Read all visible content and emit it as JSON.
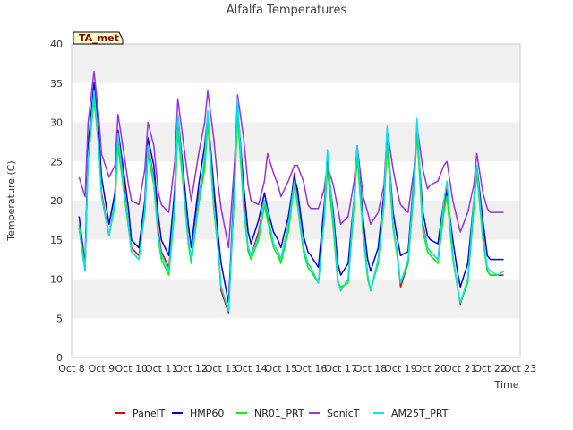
{
  "chart_data": {
    "type": "line",
    "title": "Alfalfa Temperatures",
    "xlabel": "Time",
    "ylabel": "Temperature (C)",
    "badge": "TA_met",
    "ylim": [
      0,
      40
    ],
    "xlim": [
      8,
      23
    ],
    "yticks": [
      0,
      5,
      10,
      15,
      20,
      25,
      30,
      35,
      40
    ],
    "ytick_labels": [
      "0",
      "5",
      "10",
      "15",
      "20",
      "25",
      "30",
      "35",
      "40"
    ],
    "xticks": [
      8,
      9,
      10,
      11,
      12,
      13,
      14,
      15,
      16,
      17,
      18,
      19,
      20,
      21,
      22,
      23
    ],
    "xtick_labels": [
      "Oct 8",
      "Oct 9",
      "Oct 10",
      "Oct 11",
      "Oct 12",
      "Oct 13",
      "Oct 14",
      "Oct 15",
      "Oct 16",
      "Oct 17",
      "Oct 18",
      "Oct 19",
      "Oct 20",
      "Oct 21",
      "Oct 22",
      "Oct 23"
    ],
    "grid": "horizontal bands",
    "legend_position": "bottom",
    "x_unit": "day of October",
    "series": [
      {
        "name": "PanelT",
        "color": "#dd0000",
        "x": [
          8.25,
          8.45,
          8.55,
          8.75,
          8.9,
          9.0,
          9.25,
          9.45,
          9.55,
          9.75,
          9.9,
          10.0,
          10.25,
          10.45,
          10.55,
          10.75,
          10.9,
          11.0,
          11.25,
          11.45,
          11.55,
          11.75,
          11.9,
          12.0,
          12.25,
          12.45,
          12.55,
          12.75,
          12.9,
          13.0,
          13.25,
          13.45,
          13.55,
          13.75,
          13.9,
          14.0,
          14.25,
          14.45,
          14.55,
          14.75,
          14.9,
          15.0,
          15.25,
          15.45,
          15.55,
          15.75,
          15.9,
          16.0,
          16.25,
          16.45,
          16.55,
          16.75,
          16.9,
          17.0,
          17.25,
          17.45,
          17.55,
          17.75,
          17.9,
          18.0,
          18.25,
          18.45,
          18.55,
          18.75,
          18.9,
          19.0,
          19.25,
          19.45,
          19.55,
          19.75,
          19.9,
          20.0,
          20.25,
          20.45,
          20.55,
          20.75,
          20.9,
          21.0,
          21.25,
          21.45,
          21.55,
          21.75,
          21.9,
          22.0,
          22.25,
          22.45
        ],
        "y": [
          16.5,
          11.0,
          26.0,
          34.0,
          28.0,
          21.0,
          15.5,
          20.0,
          28.0,
          22.0,
          17.0,
          14.0,
          13.0,
          19.0,
          27.0,
          23.0,
          16.0,
          13.5,
          11.5,
          20.0,
          30.0,
          22.0,
          15.0,
          12.5,
          20.5,
          25.0,
          30.5,
          20.0,
          14.0,
          8.5,
          5.7,
          22.0,
          31.5,
          20.0,
          14.0,
          13.0,
          16.0,
          20.0,
          18.0,
          14.5,
          13.5,
          12.5,
          17.0,
          23.5,
          20.5,
          14.0,
          12.0,
          11.5,
          9.5,
          18.0,
          25.0,
          17.0,
          10.0,
          8.5,
          10.0,
          20.0,
          26.0,
          16.0,
          10.5,
          8.5,
          12.5,
          20.0,
          27.5,
          17.0,
          13.0,
          9.0,
          12.0,
          22.0,
          29.0,
          17.0,
          14.0,
          13.5,
          12.5,
          19.5,
          21.5,
          13.0,
          9.0,
          6.8,
          10.0,
          19.5,
          24.0,
          16.0,
          11.0,
          10.5,
          10.5,
          10.5
        ]
      },
      {
        "name": "HMP60",
        "color": "#0000dd",
        "x": [
          8.25,
          8.45,
          8.55,
          8.75,
          8.9,
          9.0,
          9.25,
          9.45,
          9.55,
          9.75,
          9.9,
          10.0,
          10.25,
          10.45,
          10.55,
          10.75,
          10.9,
          11.0,
          11.25,
          11.45,
          11.55,
          11.75,
          11.9,
          12.0,
          12.25,
          12.45,
          12.55,
          12.75,
          12.9,
          13.0,
          13.25,
          13.45,
          13.55,
          13.75,
          13.9,
          14.0,
          14.25,
          14.45,
          14.55,
          14.75,
          14.9,
          15.0,
          15.25,
          15.45,
          15.55,
          15.75,
          15.9,
          16.0,
          16.25,
          16.45,
          16.55,
          16.75,
          16.9,
          17.0,
          17.25,
          17.45,
          17.55,
          17.75,
          17.9,
          18.0,
          18.25,
          18.45,
          18.55,
          18.75,
          18.9,
          19.0,
          19.25,
          19.45,
          19.55,
          19.75,
          19.9,
          20.0,
          20.25,
          20.45,
          20.55,
          20.75,
          20.9,
          21.0,
          21.25,
          21.45,
          21.55,
          21.75,
          21.9,
          22.0,
          22.25,
          22.45
        ],
        "y": [
          18.0,
          12.0,
          27.0,
          35.0,
          29.0,
          23.0,
          17.0,
          21.0,
          29.0,
          23.5,
          19.0,
          15.0,
          14.0,
          20.0,
          28.0,
          24.5,
          18.0,
          15.0,
          13.0,
          21.5,
          31.0,
          23.0,
          17.0,
          14.0,
          22.0,
          27.0,
          31.0,
          22.0,
          15.5,
          12.0,
          7.0,
          23.0,
          32.0,
          22.0,
          16.0,
          14.5,
          17.5,
          21.0,
          19.0,
          16.0,
          15.0,
          14.0,
          18.0,
          23.0,
          21.5,
          15.5,
          13.5,
          13.0,
          11.5,
          19.5,
          25.0,
          18.5,
          12.0,
          10.5,
          12.0,
          20.5,
          27.0,
          17.5,
          12.5,
          11.0,
          14.0,
          21.0,
          28.5,
          18.5,
          15.0,
          13.0,
          13.5,
          23.0,
          29.0,
          18.5,
          15.5,
          15.0,
          14.5,
          20.0,
          21.0,
          15.0,
          11.0,
          9.0,
          12.0,
          20.0,
          24.5,
          17.5,
          13.0,
          12.5,
          12.5,
          12.5
        ]
      },
      {
        "name": "NR01_PRT",
        "color": "#00ee00",
        "x": [
          8.25,
          8.45,
          8.55,
          8.75,
          8.9,
          9.0,
          9.25,
          9.45,
          9.55,
          9.75,
          9.9,
          10.0,
          10.25,
          10.45,
          10.55,
          10.75,
          10.9,
          11.0,
          11.25,
          11.45,
          11.55,
          11.75,
          11.9,
          12.0,
          12.25,
          12.45,
          12.55,
          12.75,
          12.9,
          13.0,
          13.25,
          13.45,
          13.55,
          13.75,
          13.9,
          14.0,
          14.25,
          14.45,
          14.55,
          14.75,
          14.9,
          15.0,
          15.25,
          15.45,
          15.55,
          15.75,
          15.9,
          16.0,
          16.25,
          16.45,
          16.55,
          16.75,
          16.9,
          17.0,
          17.25,
          17.45,
          17.55,
          17.75,
          17.9,
          18.0,
          18.25,
          18.45,
          18.55,
          18.75,
          18.9,
          19.0,
          19.25,
          19.45,
          19.55,
          19.75,
          19.9,
          20.0,
          20.25,
          20.45,
          20.55,
          20.75,
          20.9,
          21.0,
          21.25,
          21.45,
          21.55,
          21.75,
          21.9,
          22.0,
          22.25,
          22.45
        ],
        "y": [
          17.0,
          11.5,
          25.0,
          33.0,
          27.0,
          20.5,
          15.5,
          19.5,
          27.0,
          21.0,
          16.5,
          13.5,
          12.5,
          18.5,
          26.0,
          22.0,
          15.0,
          12.5,
          10.5,
          19.0,
          29.0,
          21.0,
          14.5,
          12.0,
          19.5,
          24.0,
          30.0,
          19.0,
          13.5,
          9.0,
          6.0,
          21.0,
          31.0,
          19.0,
          13.5,
          12.5,
          15.0,
          19.5,
          17.5,
          14.0,
          13.0,
          12.0,
          16.0,
          22.0,
          19.5,
          13.5,
          11.5,
          11.0,
          9.5,
          17.5,
          24.0,
          16.5,
          9.5,
          9.0,
          9.5,
          19.5,
          25.5,
          15.5,
          10.0,
          8.5,
          12.0,
          19.5,
          27.0,
          16.5,
          12.5,
          9.5,
          12.0,
          21.5,
          28.5,
          16.0,
          13.5,
          13.0,
          12.0,
          18.5,
          20.5,
          12.5,
          9.0,
          7.0,
          9.5,
          19.0,
          23.5,
          15.0,
          11.0,
          10.5,
          10.5,
          11.0
        ]
      },
      {
        "name": "SonicT",
        "color": "#9a30e0",
        "x": [
          8.25,
          8.45,
          8.55,
          8.75,
          8.9,
          9.0,
          9.25,
          9.45,
          9.55,
          9.75,
          9.9,
          10.0,
          10.25,
          10.45,
          10.55,
          10.75,
          10.9,
          11.0,
          11.25,
          11.45,
          11.55,
          11.75,
          11.9,
          12.0,
          12.25,
          12.45,
          12.55,
          12.75,
          12.9,
          13.0,
          13.25,
          13.45,
          13.55,
          13.75,
          13.9,
          14.0,
          14.25,
          14.45,
          14.55,
          14.75,
          14.9,
          15.0,
          15.25,
          15.45,
          15.55,
          15.75,
          15.9,
          16.0,
          16.25,
          16.45,
          16.55,
          16.75,
          16.9,
          17.0,
          17.25,
          17.45,
          17.55,
          17.75,
          17.9,
          18.0,
          18.25,
          18.45,
          18.55,
          18.75,
          18.9,
          19.0,
          19.25,
          19.45,
          19.55,
          19.75,
          19.9,
          20.0,
          20.25,
          20.45,
          20.55,
          20.75,
          20.9,
          21.0,
          21.25,
          21.45,
          21.55,
          21.75,
          21.9,
          22.0,
          22.25,
          22.45
        ],
        "y": [
          23.0,
          20.5,
          30.0,
          36.5,
          31.0,
          26.0,
          23.0,
          24.5,
          31.0,
          26.0,
          22.0,
          20.0,
          19.5,
          24.0,
          30.0,
          27.0,
          21.0,
          19.5,
          18.5,
          25.0,
          33.0,
          27.0,
          22.5,
          20.0,
          26.0,
          30.0,
          34.0,
          28.0,
          22.0,
          19.0,
          14.0,
          25.0,
          33.5,
          28.0,
          22.0,
          20.0,
          19.5,
          22.5,
          26.0,
          23.5,
          22.0,
          20.5,
          22.5,
          24.5,
          24.5,
          22.5,
          19.5,
          19.0,
          19.0,
          21.5,
          24.5,
          22.0,
          19.0,
          17.0,
          18.0,
          22.5,
          27.0,
          20.5,
          18.5,
          17.0,
          18.5,
          22.0,
          29.0,
          24.0,
          21.0,
          19.5,
          18.5,
          24.0,
          29.5,
          24.0,
          21.5,
          22.0,
          22.5,
          24.5,
          25.0,
          20.0,
          17.5,
          16.0,
          18.5,
          22.0,
          26.0,
          21.0,
          19.0,
          18.5,
          18.5,
          18.5
        ]
      },
      {
        "name": "AM25T_PRT",
        "color": "#00e5ee",
        "x": [
          8.25,
          8.45,
          8.55,
          8.75,
          8.9,
          9.0,
          9.25,
          9.45,
          9.55,
          9.75,
          9.9,
          10.0,
          10.25,
          10.45,
          10.55,
          10.75,
          10.9,
          11.0,
          11.25,
          11.45,
          11.55,
          11.75,
          11.9,
          12.0,
          12.25,
          12.45,
          12.55,
          12.75,
          12.9,
          13.0,
          13.25,
          13.45,
          13.55,
          13.75,
          13.9,
          14.0,
          14.25,
          14.45,
          14.55,
          14.75,
          14.9,
          15.0,
          15.25,
          15.45,
          15.55,
          15.75,
          15.9,
          16.0,
          16.25,
          16.45,
          16.55,
          16.75,
          16.9,
          17.0,
          17.25,
          17.45,
          17.55,
          17.75,
          17.9,
          18.0,
          18.25,
          18.45,
          18.55,
          18.75,
          18.9,
          19.0,
          19.25,
          19.45,
          19.55,
          19.75,
          19.9,
          20.0,
          20.25,
          20.45,
          20.55,
          20.75,
          20.9,
          21.0,
          21.25,
          21.45,
          21.55,
          21.75,
          21.9,
          22.0,
          22.25,
          22.45
        ],
        "y": [
          16.5,
          11.0,
          25.5,
          34.0,
          27.5,
          20.5,
          15.5,
          20.0,
          28.5,
          21.5,
          17.0,
          13.5,
          12.5,
          19.0,
          27.0,
          22.5,
          15.5,
          13.0,
          11.0,
          20.0,
          31.0,
          21.5,
          15.0,
          12.5,
          20.0,
          25.5,
          31.5,
          19.5,
          14.0,
          9.0,
          5.9,
          22.0,
          33.0,
          19.5,
          14.0,
          13.0,
          15.5,
          20.0,
          18.5,
          14.5,
          13.5,
          12.5,
          17.0,
          22.5,
          20.0,
          14.0,
          12.0,
          11.5,
          9.5,
          18.0,
          26.5,
          17.5,
          10.0,
          8.5,
          10.0,
          20.5,
          27.0,
          16.0,
          10.5,
          8.5,
          12.5,
          20.0,
          29.5,
          17.0,
          13.0,
          9.5,
          12.5,
          22.5,
          30.5,
          16.5,
          14.0,
          13.5,
          12.5,
          20.0,
          22.5,
          13.0,
          9.0,
          7.0,
          10.0,
          20.0,
          24.5,
          15.5,
          11.5,
          11.0,
          10.5,
          11.0
        ]
      }
    ]
  }
}
